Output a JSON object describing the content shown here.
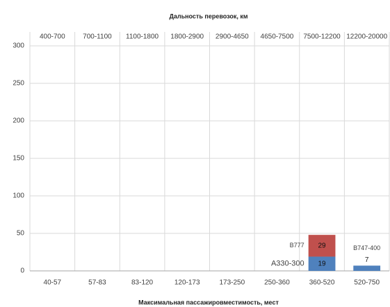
{
  "chart_data": {
    "type": "stacked_bar",
    "title": "Дальность перевозок, км",
    "x_label": "Максимальная пассажировместимость, мест",
    "categories": [
      "40-57",
      "57-83",
      "83-120",
      "120-173",
      "173-250",
      "250-360",
      "360-520",
      "520-750"
    ],
    "top_categories": [
      "400-700",
      "700-1100",
      "1100-1800",
      "1800-2900",
      "2900-4650",
      "4650-7500",
      "7500-12200",
      "12200-20000"
    ],
    "series": [
      {
        "color": "#4f81bd",
        "values": [
          null,
          null,
          null,
          null,
          null,
          null,
          19,
          7
        ],
        "point_labels": [
          null,
          null,
          null,
          null,
          null,
          null,
          "A330-300",
          "B747-400"
        ]
      },
      {
        "color": "#c0504d",
        "values": [
          null,
          null,
          null,
          null,
          null,
          null,
          29,
          null
        ],
        "point_labels": [
          null,
          null,
          null,
          null,
          null,
          null,
          "B777",
          null
        ]
      }
    ],
    "ylim": [
      0,
      300
    ],
    "yticks": [
      0,
      50,
      100,
      150,
      200,
      250,
      300
    ],
    "grid": true
  }
}
